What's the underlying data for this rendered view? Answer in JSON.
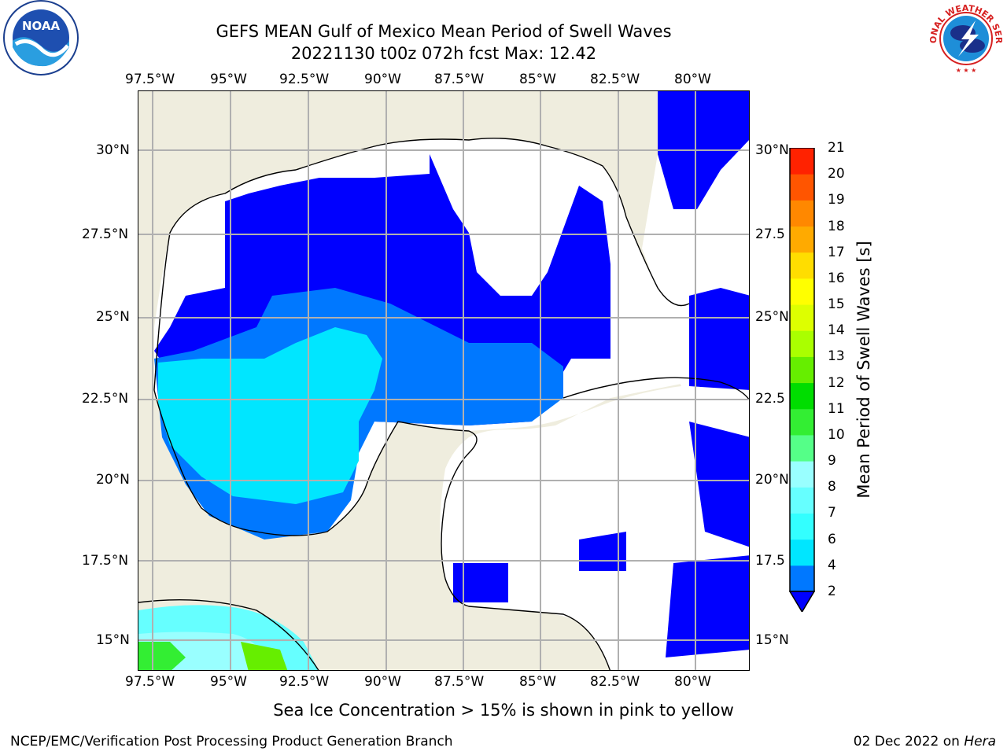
{
  "title_line1": "GEFS MEAN Gulf of Mexico Mean Period of Swell Waves",
  "title_line2": "20221130 t00z 072h fcst   Max: 12.42",
  "lon_labels": [
    "97.5°W",
    "95°W",
    "92.5°W",
    "90°W",
    "87.5°W",
    "85°W",
    "82.5°W",
    "80°W"
  ],
  "lat_labels": [
    "30°N",
    "27.5°N",
    "25°N",
    "22.5°N",
    "20°N",
    "17.5°N",
    "15°N"
  ],
  "lat_labels_right": [
    "30°N",
    "27.5",
    "25°N",
    "22.5",
    "20°N",
    "17.5",
    "15°N"
  ],
  "colorbar": {
    "title": "Mean Period of Swell Waves [s]",
    "levels": [
      "2",
      "4",
      "6",
      "7",
      "8",
      "9",
      "10",
      "11",
      "12",
      "13",
      "14",
      "15",
      "16",
      "17",
      "18",
      "19",
      "20",
      "21"
    ],
    "colors": [
      "#0000ff",
      "#0078ff",
      "#00e6ff",
      "#33ffff",
      "#66ffff",
      "#99ffff",
      "#55ff88",
      "#33ee33",
      "#00dd00",
      "#66ee00",
      "#aaff00",
      "#ddff00",
      "#ffff00",
      "#ffdd00",
      "#ffaa00",
      "#ff8800",
      "#ff5500",
      "#ff2200",
      "#ff0000"
    ]
  },
  "footnote": "Sea Ice Concentration > 15% is shown in pink to yellow",
  "credit": "NCEP/EMC/Verification Post Processing Product Generation Branch",
  "date": "02 Dec 2022 on",
  "host": "Hera",
  "logos": {
    "left": "noaa-logo",
    "left_text": "NOAA",
    "right": "nws-logo",
    "right_text": "NATIONAL WEATHER SERVICE"
  }
}
